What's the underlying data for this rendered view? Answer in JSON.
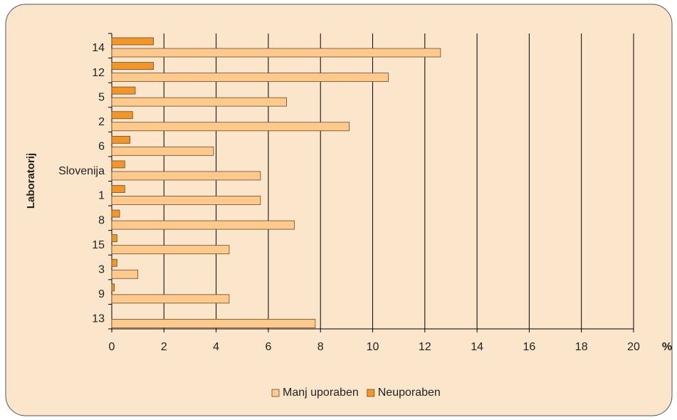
{
  "chart_data": {
    "type": "bar",
    "orientation": "horizontal",
    "y_label": "Laboratorij",
    "x_label": "%",
    "categories": [
      "14",
      "12",
      "5",
      "2",
      "6",
      "Slovenija",
      "1",
      "8",
      "15",
      "3",
      "9",
      "13"
    ],
    "series": [
      {
        "name": "Manj uporaben",
        "color": "#fdc98d",
        "values": [
          12.6,
          10.6,
          6.7,
          9.1,
          3.9,
          5.7,
          5.7,
          7.0,
          4.5,
          1.0,
          4.5,
          7.8
        ]
      },
      {
        "name": "Neuporaben",
        "color": "#f0962a",
        "values": [
          1.6,
          1.6,
          0.9,
          0.8,
          0.7,
          0.5,
          0.5,
          0.3,
          0.2,
          0.2,
          0.1,
          0
        ]
      }
    ],
    "xlim": [
      0,
      20
    ],
    "xticks": [
      0,
      2,
      4,
      6,
      8,
      10,
      12,
      14,
      16,
      18,
      20
    ],
    "grid": true,
    "legend": "bottom"
  }
}
